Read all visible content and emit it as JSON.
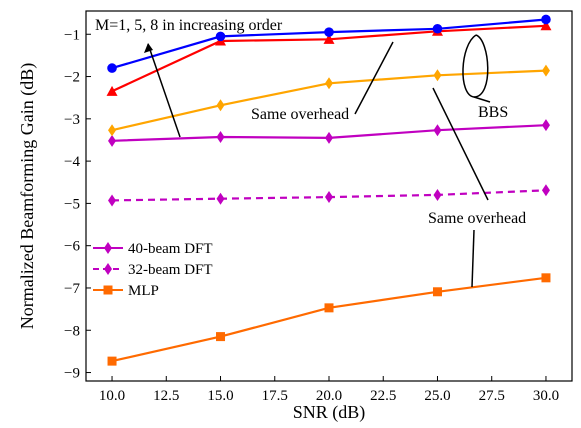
{
  "chart_data": {
    "type": "line",
    "xlabel": "SNR (dB)",
    "ylabel": "Normalized Beamforming Gain (dB)",
    "xlim": [
      8.8,
      31.2
    ],
    "ylim": [
      -9.2,
      -0.45
    ],
    "x": [
      10,
      15,
      20,
      25,
      30
    ],
    "x_ticks": [
      10,
      12.5,
      15,
      17.5,
      20,
      22.5,
      25,
      27.5,
      30
    ],
    "x_tick_labels": [
      "10.0",
      "12.5",
      "15.0",
      "17.5",
      "20.0",
      "22.5",
      "25.0",
      "27.5",
      "30.0"
    ],
    "y_ticks": [
      -9,
      -8,
      -7,
      -6,
      -5,
      -4,
      -3,
      -2,
      -1
    ],
    "y_tick_labels": [
      "−9",
      "−8",
      "−7",
      "−6",
      "−5",
      "−4",
      "−3",
      "−2",
      "−1"
    ],
    "grid": false,
    "legend_position": "bottom-left",
    "series": [
      {
        "name": "40-beam DFT",
        "color": "#c000c0",
        "marker": "diamond",
        "dashed": false,
        "values": [
          -3.52,
          -3.43,
          -3.45,
          -3.27,
          -3.15
        ]
      },
      {
        "name": "32-beam DFT",
        "color": "#c000c0",
        "marker": "diamond",
        "dashed": true,
        "values": [
          -4.93,
          -4.89,
          -4.85,
          -4.8,
          -4.69
        ]
      },
      {
        "name": "MLP",
        "color": "#ff6a00",
        "marker": "square",
        "dashed": false,
        "values": [
          -8.73,
          -8.15,
          -7.47,
          -7.09,
          -6.76
        ]
      },
      {
        "name": "",
        "color": "#ffa500",
        "marker": "diamond",
        "dashed": false,
        "values": [
          -3.27,
          -2.68,
          -2.16,
          -1.97,
          -1.86
        ]
      },
      {
        "name": "",
        "color": "#ff0000",
        "marker": "triangle",
        "dashed": false,
        "values": [
          -2.35,
          -1.16,
          -1.12,
          -0.93,
          -0.8
        ]
      },
      {
        "name": "",
        "color": "#0000ff",
        "marker": "circle",
        "dashed": false,
        "values": [
          -1.8,
          -1.05,
          -0.95,
          -0.87,
          -0.65
        ]
      }
    ],
    "annotations": [
      {
        "text": "M=1, 5, 8 in increasing order",
        "x": 10.1,
        "y": -0.88
      },
      {
        "text": "Same overhead",
        "x": 16.2,
        "y": -2.87
      },
      {
        "text": "BBS",
        "x": 25.6,
        "y": -2.6
      },
      {
        "text": "Same overhead",
        "x": 25.3,
        "y": -5.72
      }
    ]
  }
}
